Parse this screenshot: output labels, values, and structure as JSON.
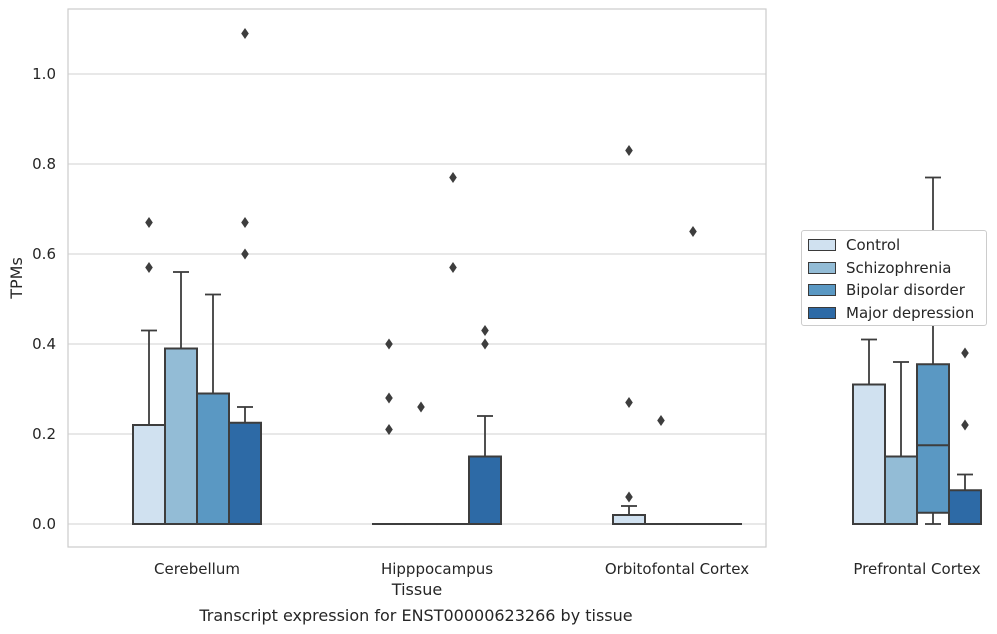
{
  "chart_data": {
    "type": "box",
    "xlabel": "Tissue",
    "ylabel": "TPMs",
    "caption": "Transcript expression for ENST00000623266 by tissue",
    "ylim": [
      -0.05,
      1.15
    ],
    "yticks": [
      "0.0",
      "0.2",
      "0.4",
      "0.6",
      "0.8",
      "1.0"
    ],
    "yticks_values": [
      0.0,
      0.2,
      0.4,
      0.6,
      0.8,
      1.0
    ],
    "grid": "horizontal",
    "legend_position": "right",
    "categories": [
      "Cerebellum",
      "Hipppocampus",
      "Orbitofontal Cortex",
      "Prefrontal Cortex"
    ],
    "series": [
      {
        "name": "Control",
        "color": "#d0e1f0",
        "boxes": [
          {
            "min": 0.0,
            "q1": 0.0,
            "median": 0.0,
            "q3": 0.22,
            "max": 0.43,
            "outliers": [
              0.57,
              0.67
            ]
          },
          {
            "min": 0.0,
            "q1": 0.0,
            "median": 0.0,
            "q3": 0.0,
            "max": 0.0,
            "outliers": [
              0.21,
              0.28,
              0.4
            ]
          },
          {
            "min": 0.0,
            "q1": 0.0,
            "median": 0.0,
            "q3": 0.02,
            "max": 0.04,
            "outliers": [
              0.06,
              0.27,
              0.83
            ]
          },
          {
            "min": 0.0,
            "q1": 0.0,
            "median": 0.0,
            "q3": 0.31,
            "max": 0.41,
            "outliers": []
          }
        ]
      },
      {
        "name": "Schizophrenia",
        "color": "#93bcd6",
        "boxes": [
          {
            "min": 0.0,
            "q1": 0.0,
            "median": 0.0,
            "q3": 0.39,
            "max": 0.56,
            "outliers": []
          },
          {
            "min": 0.0,
            "q1": 0.0,
            "median": 0.0,
            "q3": 0.0,
            "max": 0.0,
            "outliers": [
              0.26
            ]
          },
          {
            "min": 0.0,
            "q1": 0.0,
            "median": 0.0,
            "q3": 0.0,
            "max": 0.0,
            "outliers": [
              0.23
            ]
          },
          {
            "min": 0.0,
            "q1": 0.0,
            "median": 0.0,
            "q3": 0.15,
            "max": 0.36,
            "outliers": []
          }
        ]
      },
      {
        "name": "Bipolar disorder",
        "color": "#5a98c3",
        "boxes": [
          {
            "min": 0.0,
            "q1": 0.0,
            "median": 0.0,
            "q3": 0.29,
            "max": 0.51,
            "outliers": []
          },
          {
            "min": 0.0,
            "q1": 0.0,
            "median": 0.0,
            "q3": 0.0,
            "max": 0.0,
            "outliers": [
              0.57,
              0.77
            ]
          },
          {
            "min": 0.0,
            "q1": 0.0,
            "median": 0.0,
            "q3": 0.0,
            "max": 0.0,
            "outliers": [
              0.65
            ]
          },
          {
            "min": 0.0,
            "q1": 0.025,
            "median": 0.175,
            "q3": 0.355,
            "max": 0.77,
            "outliers": []
          }
        ]
      },
      {
        "name": "Major depression",
        "color": "#2d6aa6",
        "boxes": [
          {
            "min": 0.0,
            "q1": 0.0,
            "median": 0.0,
            "q3": 0.225,
            "max": 0.26,
            "outliers": [
              0.6,
              0.67,
              1.09
            ]
          },
          {
            "min": 0.0,
            "q1": 0.0,
            "median": 0.0,
            "q3": 0.15,
            "max": 0.24,
            "outliers": [
              0.4,
              0.43
            ]
          },
          {
            "min": 0.0,
            "q1": 0.0,
            "median": 0.0,
            "q3": 0.0,
            "max": 0.0,
            "outliers": []
          },
          {
            "min": 0.0,
            "q1": 0.0,
            "median": 0.0,
            "q3": 0.075,
            "max": 0.11,
            "outliers": [
              0.22,
              0.38
            ]
          }
        ]
      }
    ]
  }
}
